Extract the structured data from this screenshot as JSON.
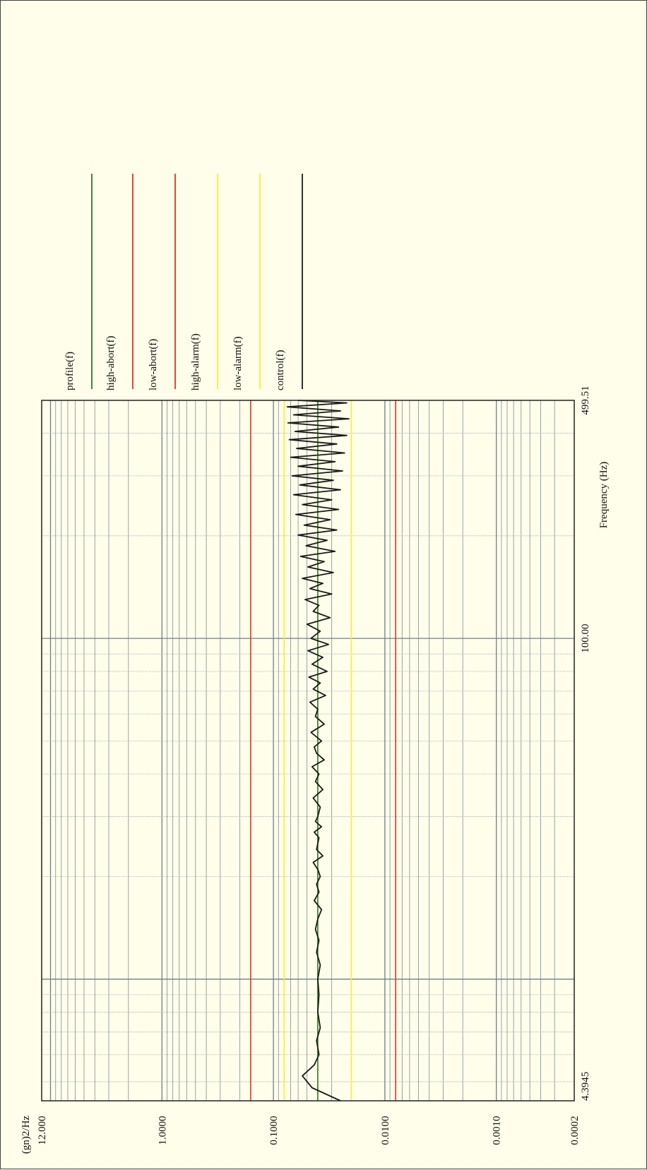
{
  "chart_data": {
    "type": "line",
    "title": "",
    "xlabel": "Frequency (Hz)",
    "ylabel": "(gn)2/Hz",
    "x_scale": "log",
    "y_scale": "log",
    "xlim": [
      4.3945,
      499.51
    ],
    "ylim": [
      0.0002,
      12.0
    ],
    "x_tick_labels": [
      "4.3945",
      "100.00",
      "499.51"
    ],
    "x_tick_values": [
      4.3945,
      100,
      499.51
    ],
    "y_tick_labels": [
      "12.000",
      "1.0000",
      "0.1000",
      "0.0100",
      "0.0010",
      "0.0002"
    ],
    "y_tick_values": [
      12,
      1,
      0.1,
      0.01,
      0.001,
      0.0002
    ],
    "grid": true,
    "legend_position": "top-right",
    "series": [
      {
        "name": "profile(f)",
        "color": "#2f7a1f",
        "x": [
          4.3945,
          499.51
        ],
        "y": [
          0.04,
          0.04
        ]
      },
      {
        "name": "high-abort(f)",
        "color": "#e8321e",
        "x": [
          4.3945,
          499.51
        ],
        "y": [
          0.16,
          0.16
        ]
      },
      {
        "name": "low-abort(f)",
        "color": "#e8321e",
        "x": [
          4.3945,
          499.51
        ],
        "y": [
          0.008,
          0.008
        ]
      },
      {
        "name": "high-alarm(f)",
        "color": "#f4ee3c",
        "x": [
          4.3945,
          499.51
        ],
        "y": [
          0.08,
          0.08
        ]
      },
      {
        "name": "low-alarm(f)",
        "color": "#f4ee3c",
        "x": [
          4.3945,
          499.51
        ],
        "y": [
          0.02,
          0.02
        ]
      },
      {
        "name": "control(f)",
        "color": "#1a1a1a",
        "x": [
          4.3945,
          4.8,
          5.2,
          5.6,
          6.0,
          6.6,
          7.2,
          8.0,
          9.0,
          10.0,
          11.0,
          12.0,
          13.0,
          14.0,
          15.0,
          16.0,
          17.0,
          18.0,
          19.0,
          20.0,
          21.0,
          22.0,
          23.0,
          24.0,
          25.0,
          26.0,
          27.0,
          28.0,
          29.0,
          30.0,
          32.0,
          34.0,
          36.0,
          38.0,
          40.0,
          42.0,
          44.0,
          46.0,
          48.0,
          50.0,
          53.0,
          56.0,
          59.0,
          62.0,
          65.0,
          68.0,
          71.0,
          74.0,
          77.0,
          80.0,
          84.0,
          88.0,
          92.0,
          96.0,
          100.0,
          105.0,
          110.0,
          115.0,
          120.0,
          125.0,
          130.0,
          135.0,
          140.0,
          145.0,
          150.0,
          156.0,
          162.0,
          168.0,
          174.0,
          180.0,
          187.0,
          194.0,
          201.0,
          208.0,
          215.0,
          223.0,
          231.0,
          239.0,
          247.0,
          255.0,
          264.0,
          273.0,
          282.0,
          291.0,
          300.0,
          310.0,
          320.0,
          330.0,
          340.0,
          350.0,
          361.0,
          372.0,
          383.0,
          394.0,
          405.0,
          417.0,
          429.0,
          441.0,
          453.0,
          465.0,
          478.0,
          491.0,
          499.51
        ],
        "y": [
          0.025,
          0.045,
          0.055,
          0.043,
          0.039,
          0.041,
          0.038,
          0.04,
          0.039,
          0.04,
          0.038,
          0.041,
          0.039,
          0.042,
          0.04,
          0.037,
          0.043,
          0.039,
          0.041,
          0.038,
          0.04,
          0.044,
          0.036,
          0.041,
          0.04,
          0.039,
          0.043,
          0.037,
          0.042,
          0.04,
          0.038,
          0.044,
          0.036,
          0.042,
          0.039,
          0.045,
          0.035,
          0.041,
          0.043,
          0.037,
          0.046,
          0.035,
          0.042,
          0.04,
          0.047,
          0.034,
          0.044,
          0.038,
          0.048,
          0.033,
          0.045,
          0.036,
          0.049,
          0.032,
          0.046,
          0.038,
          0.05,
          0.031,
          0.044,
          0.039,
          0.052,
          0.03,
          0.047,
          0.036,
          0.055,
          0.029,
          0.049,
          0.035,
          0.057,
          0.028,
          0.051,
          0.033,
          0.06,
          0.027,
          0.053,
          0.031,
          0.063,
          0.026,
          0.055,
          0.03,
          0.066,
          0.025,
          0.058,
          0.029,
          0.068,
          0.024,
          0.06,
          0.028,
          0.07,
          0.023,
          0.062,
          0.027,
          0.072,
          0.022,
          0.064,
          0.026,
          0.074,
          0.021,
          0.066,
          0.025,
          0.075,
          0.022,
          0.06
        ]
      }
    ]
  }
}
